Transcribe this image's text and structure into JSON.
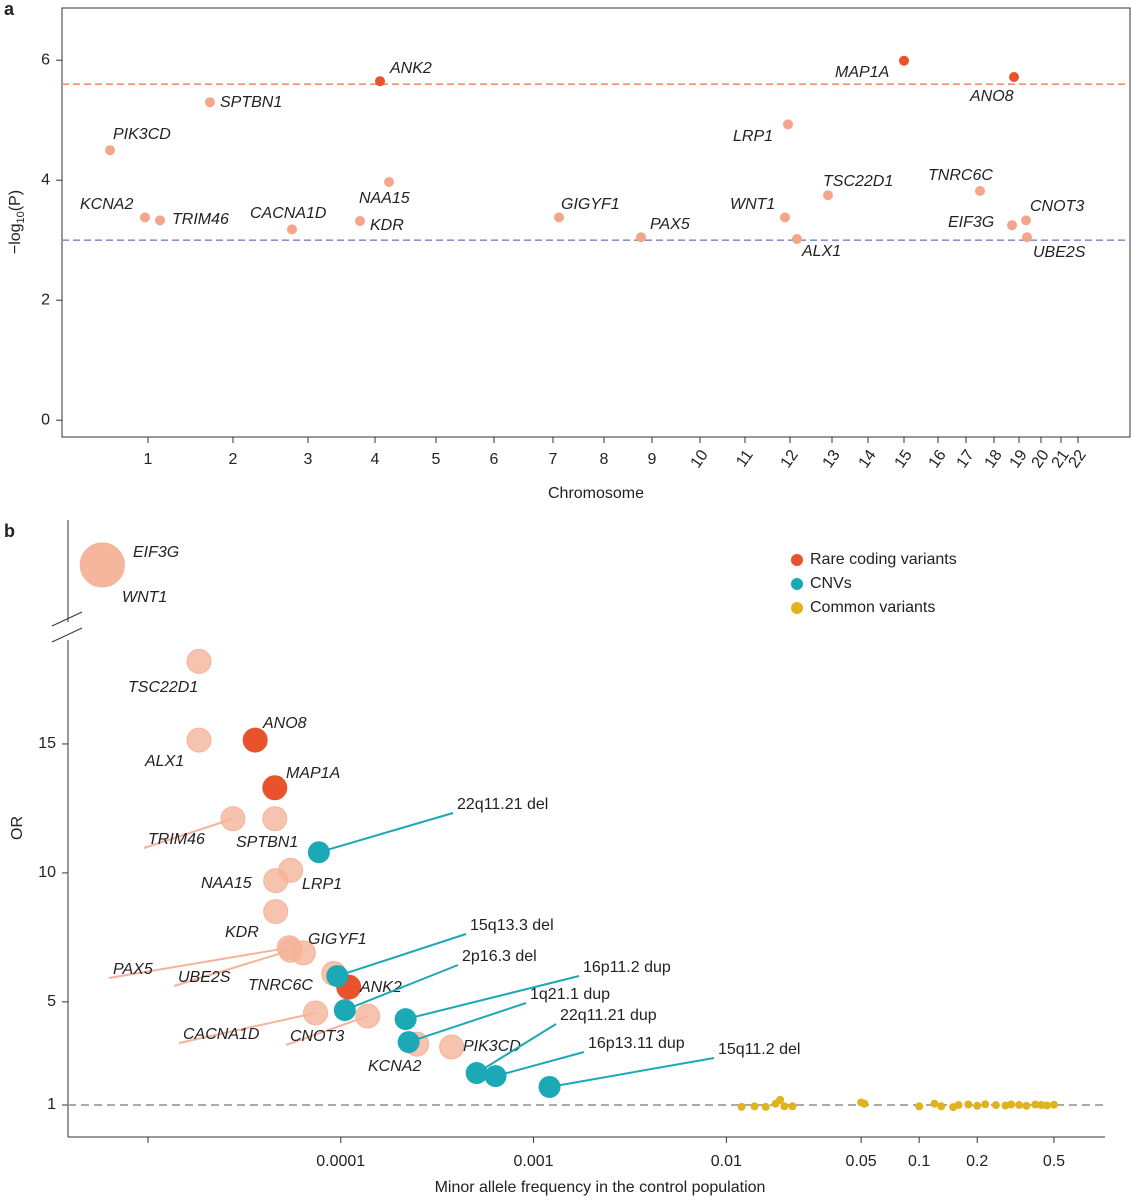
{
  "chart_data": [
    {
      "type": "manhattan",
      "panel": "a",
      "y_label": {
        "prefix": "−log",
        "subscript": "10",
        "suffix": "(P)"
      },
      "x_label": "Chromosome",
      "categories": [
        "1",
        "2",
        "3",
        "4",
        "5",
        "6",
        "7",
        "8",
        "9",
        "10",
        "11",
        "12",
        "13",
        "14",
        "15",
        "16",
        "17",
        "18",
        "19",
        "20",
        "21",
        "22"
      ],
      "ylim": [
        -0.28,
        6.87
      ],
      "yticks": [
        0,
        2,
        4,
        6
      ],
      "hlines": [
        {
          "value": 5.6,
          "color": "#f08f6e"
        },
        {
          "value": 3,
          "color": "#8a93c9"
        }
      ],
      "strong_color": "#e8532b",
      "faded_color": "#f4a58a",
      "points": [
        {
          "label": "PIK3CD",
          "chromosome": "1",
          "value": 4.5,
          "strong": false
        },
        {
          "label": "KCNA2",
          "chromosome": "1",
          "value": 3.38,
          "strong": false
        },
        {
          "label": "TRIM46",
          "chromosome": "1",
          "value": 3.33,
          "strong": false
        },
        {
          "label": "SPTBN1",
          "chromosome": "2",
          "value": 5.3,
          "strong": false
        },
        {
          "label": "CACNA1D",
          "chromosome": "3",
          "value": 3.18,
          "strong": false
        },
        {
          "label": "ANK2",
          "chromosome": "4",
          "value": 5.65,
          "strong": true
        },
        {
          "label": "NAA15",
          "chromosome": "4",
          "value": 3.97,
          "strong": false
        },
        {
          "label": "KDR",
          "chromosome": "4",
          "value": 3.32,
          "strong": false
        },
        {
          "label": "GIGYF1",
          "chromosome": "7",
          "value": 3.38,
          "strong": false
        },
        {
          "label": "PAX5",
          "chromosome": "9",
          "value": 3.05,
          "strong": false
        },
        {
          "label": "WNT1",
          "chromosome": "12",
          "value": 3.38,
          "strong": false
        },
        {
          "label": "LRP1",
          "chromosome": "12",
          "value": 4.93,
          "strong": false
        },
        {
          "label": "ALX1",
          "chromosome": "12",
          "value": 3.02,
          "strong": false
        },
        {
          "label": "TSC22D1",
          "chromosome": "13",
          "value": 3.75,
          "strong": false
        },
        {
          "label": "MAP1A",
          "chromosome": "15",
          "value": 5.99,
          "strong": true
        },
        {
          "label": "TNRC6C",
          "chromosome": "17",
          "value": 3.82,
          "strong": false
        },
        {
          "label": "EIF3G",
          "chromosome": "19",
          "value": 3.25,
          "strong": false
        },
        {
          "label": "ANO8",
          "chromosome": "19",
          "value": 5.72,
          "strong": true
        },
        {
          "label": "CNOT3",
          "chromosome": "19",
          "value": 3.33,
          "strong": false
        },
        {
          "label": "UBE2S",
          "chromosome": "19",
          "value": 3.05,
          "strong": false
        }
      ]
    },
    {
      "type": "scatter",
      "panel": "b",
      "y_label": "OR",
      "x_label": "Minor allele frequency in the control population",
      "log_x": true,
      "xlim": [
        3.85e-06,
        0.92
      ],
      "ylim": [
        -0.24,
        20.0
      ],
      "xticks": [
        {
          "value": 0.0001,
          "label": "0.0001"
        },
        0.001,
        0.01,
        0.05,
        0.1,
        0.2,
        0.5
      ],
      "yticks": [
        1,
        5,
        10,
        15
      ],
      "reference_line": 1,
      "legend": "top-right",
      "series": [
        {
          "name": "Rare coding variants",
          "color": "#e8532b",
          "faded_color": "#f4b49a",
          "points": [
            {
              "label": "EIF3G",
              "x": 5.8e-06,
              "y": null,
              "strong": false
            },
            {
              "label": "WNT1",
              "x": 5.8e-06,
              "y": null,
              "strong": false
            },
            {
              "label": "TSC22D1",
              "x": 1.84e-05,
              "y": 18.2,
              "strong": false
            },
            {
              "label": "ALX1",
              "x": 1.84e-05,
              "y": 15.15,
              "strong": false
            },
            {
              "label": "ANO8",
              "x": 3.6e-05,
              "y": 15.15,
              "strong": true
            },
            {
              "label": "MAP1A",
              "x": 4.55e-05,
              "y": 13.3,
              "strong": true
            },
            {
              "label": "TRIM46",
              "x": 2.76e-05,
              "y": 12.1,
              "strong": false
            },
            {
              "label": "SPTBN1",
              "x": 4.55e-05,
              "y": 12.1,
              "strong": false
            },
            {
              "label": "LRP1",
              "x": 5.5e-05,
              "y": 10.1,
              "strong": false
            },
            {
              "label": "NAA15",
              "x": 4.6e-05,
              "y": 9.7,
              "strong": false
            },
            {
              "label": "KDR",
              "x": 4.6e-05,
              "y": 8.5,
              "strong": false
            },
            {
              "label": "GIGYF1",
              "x": 6.4e-05,
              "y": 6.9,
              "strong": false
            },
            {
              "label": "PAX5",
              "x": 5.4e-05,
              "y": 7.1,
              "strong": false
            },
            {
              "label": "UBE2S",
              "x": 5.5e-05,
              "y": 7.0,
              "strong": false
            },
            {
              "label": "TNRC6C",
              "x": 9.2e-05,
              "y": 6.1,
              "strong": false
            },
            {
              "label": "ANK2",
              "x": 0.00011,
              "y": 5.57,
              "strong": true
            },
            {
              "label": "CACNA1D",
              "x": 7.4e-05,
              "y": 4.57,
              "strong": false
            },
            {
              "label": "CNOT3",
              "x": 0.000138,
              "y": 4.45,
              "strong": false
            },
            {
              "label": "KCNA2",
              "x": 0.000248,
              "y": 3.36,
              "strong": false
            },
            {
              "label": "PIK3CD",
              "x": 0.000376,
              "y": 3.25,
              "strong": false
            }
          ]
        },
        {
          "name": "CNVs",
          "color": "#1ba9b5",
          "points": [
            {
              "label": "22q11.21 del",
              "x": 7.7e-05,
              "y": 10.8
            },
            {
              "label": "15q13.3 del",
              "x": 9.6e-05,
              "y": 6.0
            },
            {
              "label": "16p11.2 dup",
              "x": 0.000217,
              "y": 4.33
            },
            {
              "label": "2p16.3 del",
              "x": 0.000105,
              "y": 4.68
            },
            {
              "label": "1q21.1 dup",
              "x": 0.000225,
              "y": 3.44
            },
            {
              "label": "22q11.21 dup",
              "x": 0.000507,
              "y": 2.24
            },
            {
              "label": "16p13.11 dup",
              "x": 0.000635,
              "y": 2.12
            },
            {
              "label": "15q11.2 del",
              "x": 0.00121,
              "y": 1.7
            }
          ]
        },
        {
          "name": "Common variants",
          "color": "#e0b31e",
          "points": [
            {
              "x": 0.012,
              "y": 0.93
            },
            {
              "x": 0.014,
              "y": 0.95
            },
            {
              "x": 0.016,
              "y": 0.93
            },
            {
              "x": 0.018,
              "y": 1.05
            },
            {
              "x": 0.019,
              "y": 1.2
            },
            {
              "x": 0.02,
              "y": 0.95
            },
            {
              "x": 0.022,
              "y": 0.95
            },
            {
              "x": 0.05,
              "y": 1.1
            },
            {
              "x": 0.052,
              "y": 1.05
            },
            {
              "x": 0.1,
              "y": 0.95
            },
            {
              "x": 0.12,
              "y": 1.05
            },
            {
              "x": 0.13,
              "y": 0.95
            },
            {
              "x": 0.15,
              "y": 0.92
            },
            {
              "x": 0.16,
              "y": 1.0
            },
            {
              "x": 0.18,
              "y": 1.02
            },
            {
              "x": 0.2,
              "y": 0.97
            },
            {
              "x": 0.22,
              "y": 1.03
            },
            {
              "x": 0.25,
              "y": 1.0
            },
            {
              "x": 0.28,
              "y": 0.98
            },
            {
              "x": 0.3,
              "y": 1.02
            },
            {
              "x": 0.33,
              "y": 1.0
            },
            {
              "x": 0.36,
              "y": 0.97
            },
            {
              "x": 0.4,
              "y": 1.02
            },
            {
              "x": 0.43,
              "y": 1.0
            },
            {
              "x": 0.46,
              "y": 0.98
            },
            {
              "x": 0.5,
              "y": 1.01
            }
          ]
        }
      ]
    }
  ]
}
